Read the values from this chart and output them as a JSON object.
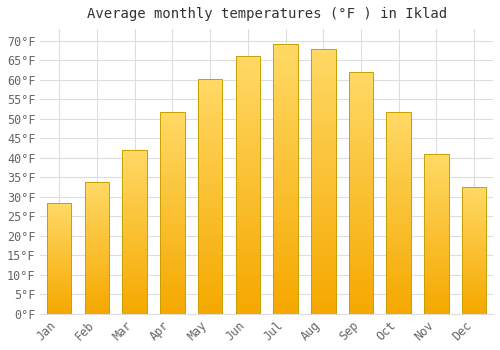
{
  "title": "Average monthly temperatures (°F ) in Iklad",
  "months": [
    "Jan",
    "Feb",
    "Mar",
    "Apr",
    "May",
    "Jun",
    "Jul",
    "Aug",
    "Sep",
    "Oct",
    "Nov",
    "Dec"
  ],
  "values": [
    28.4,
    33.8,
    42.1,
    51.8,
    60.3,
    66.2,
    69.1,
    67.8,
    62.1,
    51.8,
    41.0,
    32.5
  ],
  "bar_color_bottom": "#F5A800",
  "bar_color_top": "#FFD966",
  "bar_edge_color": "#C8A000",
  "background_color": "#FFFFFF",
  "grid_color": "#DDDDDD",
  "text_color": "#666666",
  "ylim": [
    0,
    73
  ],
  "yticks": [
    0,
    5,
    10,
    15,
    20,
    25,
    30,
    35,
    40,
    45,
    50,
    55,
    60,
    65,
    70
  ],
  "title_fontsize": 10,
  "tick_fontsize": 8.5,
  "font_family": "monospace"
}
